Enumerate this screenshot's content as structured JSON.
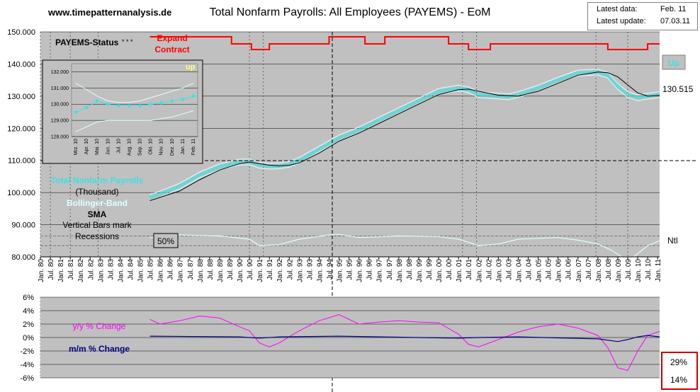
{
  "header": {
    "website": "www.timepatternanalysis.de",
    "title": "Total Nonfarm Payrolls: All Employees (PAYEMS) - EoM",
    "latest_data_label": "Latest data:",
    "latest_data_value": "Feb. 11",
    "latest_update_label": "Latest update:",
    "latest_update_value": "07.03.11"
  },
  "colors": {
    "plot_bg": "#c0c0c0",
    "price": "#40e0e0",
    "sma": "#000000",
    "bollinger": "#e0ffff",
    "status_line": "#ff0000",
    "yy_change": "#ff00ff",
    "mm_change": "#000080"
  },
  "main_panel": {
    "status_label": "PAYEMS-Status",
    "status_stars": "* * *",
    "expand_label": "Expand",
    "contract_label": "Contract",
    "up_badge": "Up",
    "last_value": "130.515",
    "ntl_label": "Ntl",
    "pct_badge": "50%",
    "legend_series": "Total Nonfarm Payrolls",
    "legend_unit": "(Thousand)",
    "legend_bollinger": "Bollinger-Band",
    "legend_sma": "SMA",
    "legend_note1": "Vertical Bars mark",
    "legend_note2": "Recessions",
    "y_ticks": [
      "150.000",
      "140.000",
      "130.000",
      "120.000",
      "110.000",
      "100.000",
      "90.000",
      "80.000"
    ],
    "dashed_line_label": "110.000"
  },
  "inset": {
    "up_label": "up",
    "y_ticks": [
      "132.000",
      "131.000",
      "130.000",
      "129.000",
      "128.000"
    ],
    "x_ticks": [
      "Mrz. 10",
      "Apr. 10",
      "Mai. 10",
      "Jun. 10",
      "Jul. 10",
      "Aug. 10",
      "Sep. 10",
      "Okt. 10",
      "Nov. 10",
      "Dez. 10",
      "Jan. 11",
      "Feb. 11"
    ]
  },
  "change_panel": {
    "yy_label": "y/y % Change",
    "mm_label": "m/m % Change",
    "y_ticks": [
      "6%",
      "4%",
      "2%",
      "0%",
      "-2%",
      "-4%",
      "-6%"
    ],
    "box_top": "29%",
    "box_bottom": "14%"
  },
  "x_axis_ticks": [
    "Jan. 80",
    "Jul. 80",
    "Jan. 81",
    "Jul. 81",
    "Jan. 82",
    "Jul. 82",
    "Jan. 83",
    "Jul. 83",
    "Jan. 84",
    "Jul. 84",
    "Jan. 85",
    "Jul. 85",
    "Jan. 86",
    "Jul. 86",
    "Jan. 87",
    "Jul. 87",
    "Jan. 88",
    "Jul. 88",
    "Jan. 89",
    "Jul. 89",
    "Jan. 90",
    "Jul. 90",
    "Jan. 91",
    "Jul. 91",
    "Jan. 92",
    "Jul. 92",
    "Jan. 93",
    "Jul. 93",
    "Jan. 94",
    "Jul. 94",
    "Jan. 95",
    "Jul. 95",
    "Jan. 96",
    "Jul. 96",
    "Jan. 97",
    "Jul. 97",
    "Jan. 98",
    "Jul. 98",
    "Jan. 99",
    "Jul. 99",
    "Jan. 00",
    "Jul. 00",
    "Jan. 01",
    "Jul. 01",
    "Jan. 02",
    "Jul. 02",
    "Jan. 03",
    "Jul. 03",
    "Jan. 04",
    "Jul. 04",
    "Jan. 05",
    "Jul. 05",
    "Jan. 06",
    "Jul. 06",
    "Jan. 07",
    "Jul. 07",
    "Jan. 08",
    "Jul. 08",
    "Jan. 09",
    "Jul. 09",
    "Jan. 10",
    "Jul. 10",
    "Jan. 11"
  ],
  "chart_data": [
    {
      "type": "line",
      "title": "Total Nonfarm Payrolls: All Employees (PAYEMS) - EoM",
      "ylim": [
        80,
        150
      ],
      "x_range": [
        1980.0,
        2011.1
      ],
      "recessions": [
        [
          1980.0,
          1980.5
        ],
        [
          1981.5,
          1982.9
        ],
        [
          1990.5,
          1991.2
        ],
        [
          2001.2,
          2001.9
        ],
        [
          2007.9,
          2009.5
        ]
      ],
      "series": [
        {
          "name": "Total Nonfarm Payrolls",
          "x": [
            1985.5,
            1986,
            1987,
            1988,
            1989,
            1990,
            1990.5,
            1991,
            1991.5,
            1992,
            1992.5,
            1993,
            1994,
            1995,
            1996,
            1997,
            1998,
            1999,
            2000,
            2001,
            2001.5,
            2002,
            2003,
            2003.5,
            2004,
            2005,
            2006,
            2007,
            2008,
            2008.5,
            2009,
            2009.5,
            2010,
            2010.5,
            2011.1
          ],
          "values": [
            98.5,
            99.5,
            102,
            105.5,
            108,
            109.5,
            109.5,
            108.5,
            108.2,
            108.3,
            108.8,
            110,
            113.5,
            117,
            119.5,
            122.5,
            125.5,
            128.5,
            131.5,
            132.5,
            132,
            130.5,
            130,
            129.8,
            130.5,
            132.5,
            135,
            137.2,
            137.5,
            136.5,
            133,
            130.5,
            129.5,
            130,
            130.5
          ]
        },
        {
          "name": "SMA",
          "x": [
            1985.5,
            1986,
            1987,
            1988,
            1989,
            1990,
            1990.5,
            1991,
            1991.5,
            1992,
            1992.5,
            1993,
            1994,
            1995,
            1996,
            1997,
            1998,
            1999,
            2000,
            2001,
            2001.5,
            2002,
            2003,
            2004,
            2005,
            2006,
            2007,
            2008,
            2008.5,
            2009,
            2009.5,
            2010,
            2010.5,
            2011.1
          ],
          "values": [
            97.5,
            98.5,
            100.5,
            104,
            107,
            109,
            109.5,
            109,
            108.5,
            108.3,
            108.5,
            109.2,
            112.3,
            116,
            118.5,
            121.5,
            124.5,
            127.5,
            130.5,
            132,
            132.2,
            131.5,
            130.3,
            130,
            131.5,
            134,
            136.5,
            137.5,
            137.3,
            136,
            133.5,
            131,
            130,
            130.2
          ]
        },
        {
          "name": "y/y % Change",
          "x": [
            1985.5,
            1986,
            1987,
            1988,
            1989,
            1990,
            1990.5,
            1991,
            1991.5,
            1992,
            1993,
            1994,
            1995,
            1996,
            1997,
            1998,
            1999,
            2000,
            2001,
            2001.5,
            2002,
            2003,
            2004,
            2005,
            2006,
            2007,
            2008,
            2008.5,
            2009,
            2009.5,
            2010,
            2010.5,
            2011.1
          ],
          "values": [
            2.7,
            2.0,
            2.5,
            3.2,
            2.9,
            1.6,
            1.0,
            -0.8,
            -1.4,
            -0.8,
            1.0,
            2.5,
            3.4,
            2.0,
            2.3,
            2.5,
            2.3,
            2.2,
            0.5,
            -1.0,
            -1.4,
            -0.3,
            0.8,
            1.6,
            2.0,
            1.4,
            0.3,
            -1.5,
            -4.5,
            -4.9,
            -2.0,
            0.3,
            0.9
          ]
        },
        {
          "name": "m/m % Change",
          "x": [
            1985.5,
            1990,
            1991,
            1992,
            1995,
            2001,
            2002,
            2004,
            2008,
            2009,
            2009.5,
            2010,
            2010.5,
            2011.1
          ],
          "values": [
            0.2,
            0.1,
            -0.1,
            0.1,
            0.2,
            -0.1,
            0,
            0.1,
            -0.2,
            -0.6,
            -0.3,
            0.1,
            0.3,
            0.1
          ]
        }
      ]
    }
  ]
}
